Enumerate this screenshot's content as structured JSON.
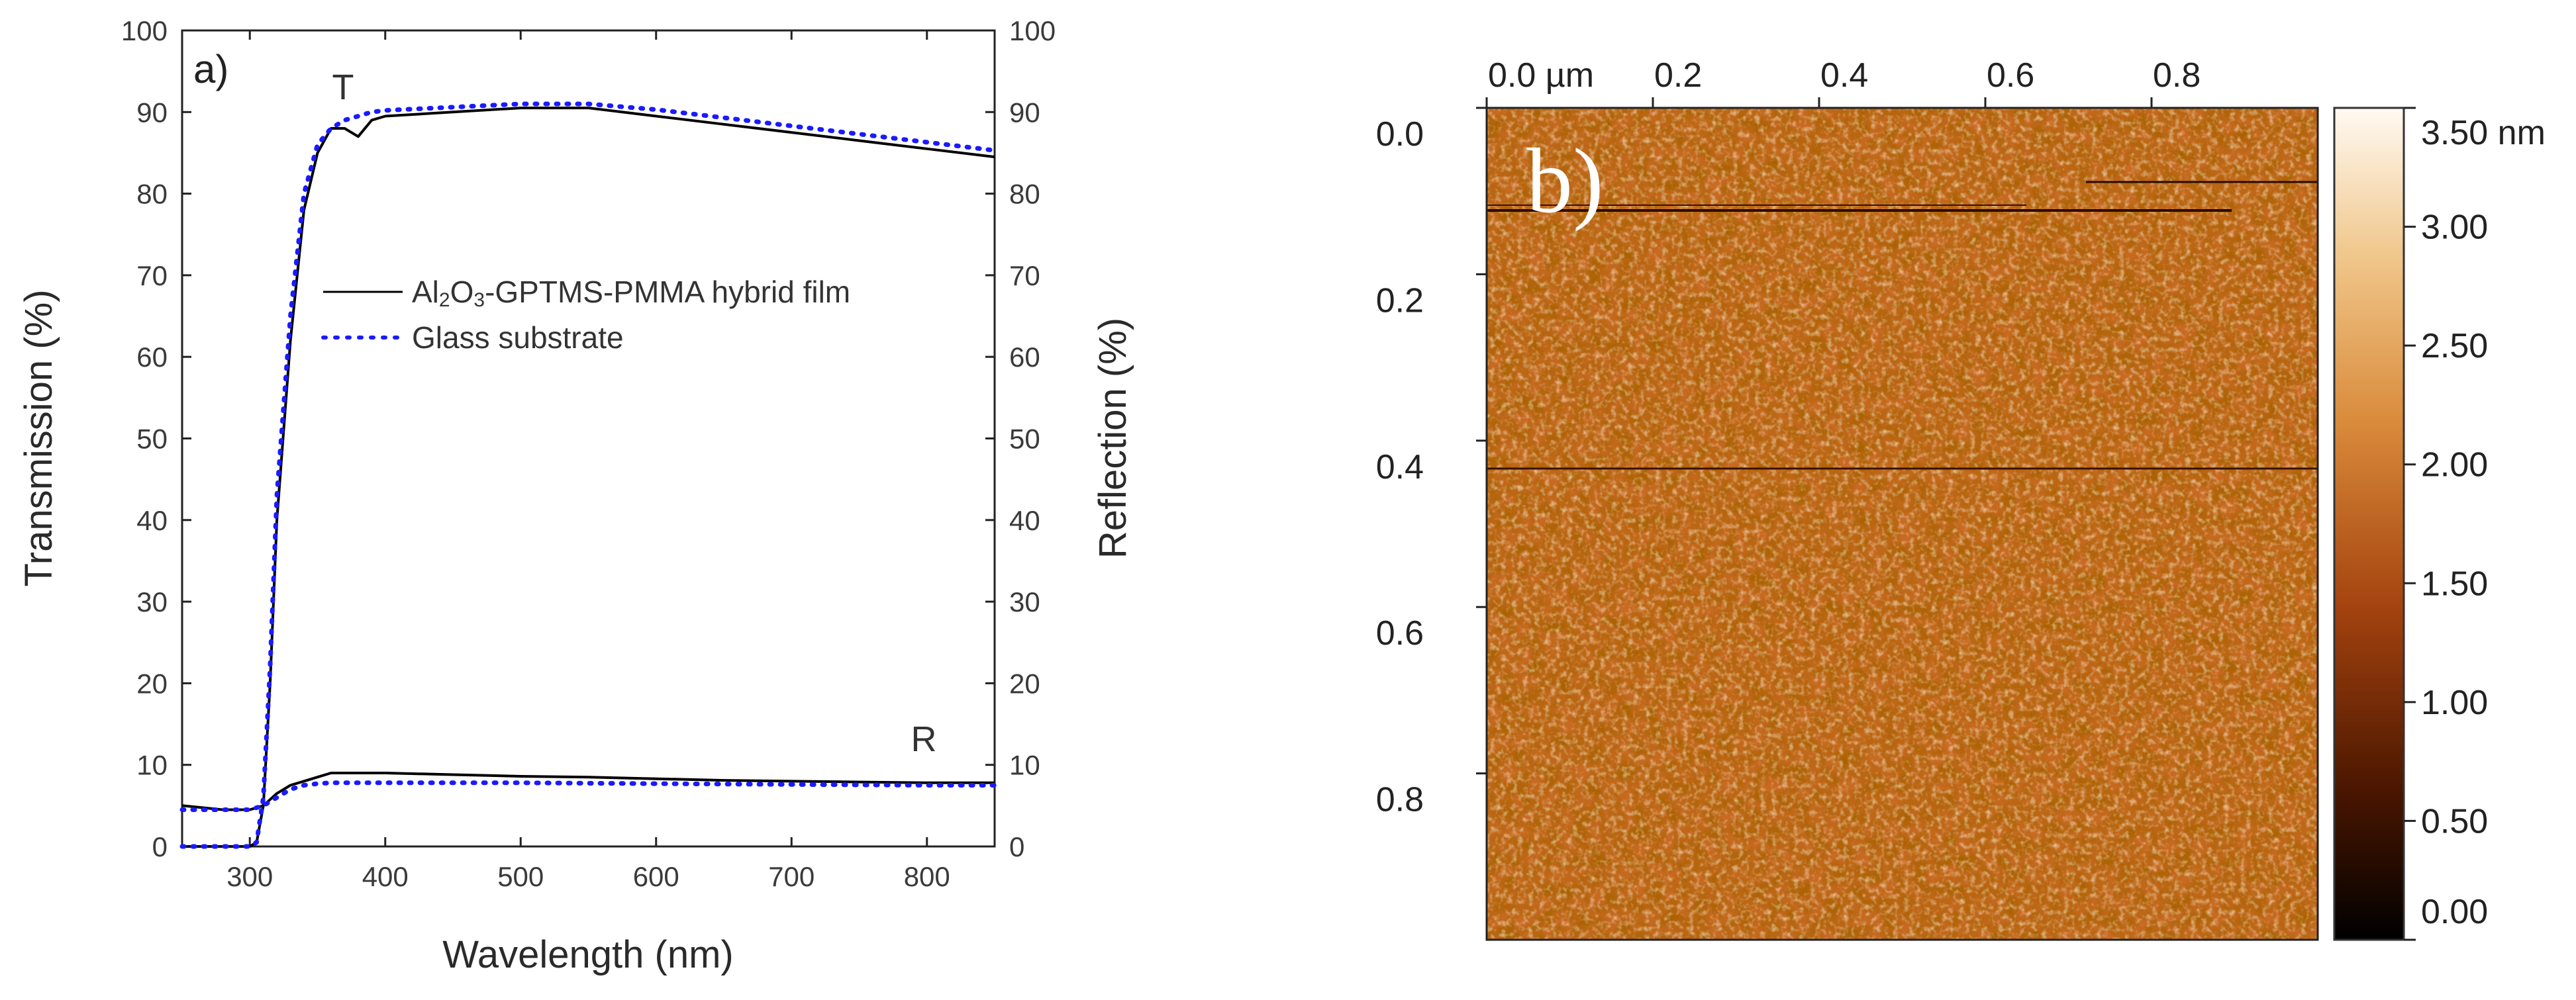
{
  "chart_data": [
    {
      "type": "line",
      "panel_label": "a)",
      "xlabel": "Wavelength (nm)",
      "ylabel": "Transmission (%)",
      "y2label": "Reflection (%)",
      "xlim": [
        250,
        850
      ],
      "ylim": [
        0,
        100
      ],
      "y2lim": [
        0,
        100
      ],
      "x_ticks": [
        "300",
        "400",
        "500",
        "600",
        "700",
        "800"
      ],
      "y_ticks": [
        "0",
        "10",
        "20",
        "30",
        "40",
        "50",
        "60",
        "70",
        "80",
        "90",
        "100"
      ],
      "y2_ticks": [
        "0",
        "10",
        "20",
        "30",
        "40",
        "50",
        "60",
        "70",
        "80",
        "90",
        "100"
      ],
      "annotations": [
        "T",
        "R"
      ],
      "legend": [
        "Al2O3-GPTMS-PMMA hybrid film",
        "Glass substrate"
      ],
      "series": [
        {
          "name": "Al2O3-GPTMS-PMMA hybrid film (T)",
          "color": "#000000",
          "style": "solid",
          "x": [
            250,
            300,
            305,
            310,
            315,
            320,
            330,
            340,
            350,
            360,
            370,
            380,
            390,
            400,
            450,
            500,
            550,
            600,
            650,
            700,
            750,
            800,
            850
          ],
          "y": [
            0,
            0,
            0.5,
            5,
            20,
            40,
            62,
            78,
            85,
            88,
            88,
            87,
            89,
            89.5,
            90,
            90.5,
            90.5,
            89.5,
            88.5,
            87.5,
            86.5,
            85.5,
            84.5
          ]
        },
        {
          "name": "Glass substrate (T)",
          "color": "#1a1aff",
          "style": "dotted",
          "x": [
            250,
            300,
            305,
            310,
            315,
            320,
            330,
            340,
            350,
            360,
            370,
            380,
            390,
            400,
            450,
            500,
            550,
            600,
            650,
            700,
            750,
            800,
            850
          ],
          "y": [
            0,
            0,
            0.5,
            6,
            22,
            43,
            65,
            80,
            86,
            88,
            89,
            89.5,
            90,
            90.2,
            90.6,
            91,
            91,
            90.3,
            89.3,
            88.3,
            87.3,
            86.3,
            85.3
          ]
        },
        {
          "name": "Al2O3-GPTMS-PMMA hybrid film (R)",
          "color": "#000000",
          "style": "solid",
          "x": [
            250,
            280,
            300,
            310,
            320,
            330,
            340,
            350,
            360,
            380,
            400,
            450,
            500,
            550,
            600,
            650,
            700,
            750,
            800,
            850
          ],
          "y": [
            5,
            4.5,
            4.5,
            5,
            6.5,
            7.5,
            8,
            8.5,
            9,
            9,
            9,
            8.8,
            8.6,
            8.5,
            8.3,
            8.1,
            8,
            7.9,
            7.8,
            7.8
          ]
        },
        {
          "name": "Glass substrate (R)",
          "color": "#1a1aff",
          "style": "dotted",
          "x": [
            250,
            300,
            310,
            320,
            330,
            340,
            350,
            360,
            380,
            400,
            500,
            600,
            700,
            800,
            850
          ],
          "y": [
            4.5,
            4.5,
            5,
            6,
            7,
            7.5,
            7.7,
            7.8,
            7.8,
            7.8,
            7.8,
            7.7,
            7.6,
            7.5,
            7.5
          ]
        }
      ]
    },
    {
      "type": "heatmap",
      "panel_label": "b)",
      "description_colormap": [
        "#000000",
        "#5a1a00",
        "#a64510",
        "#d98a3a",
        "#f0c885",
        "#fff8ec"
      ],
      "x_ticks": [
        "0.0 µm",
        "0.2",
        "0.4",
        "0.6",
        "0.8"
      ],
      "y_ticks": [
        "0.0",
        "0.2",
        "0.4",
        "0.6",
        "0.8"
      ],
      "colorbar_ticks": [
        "3.50 nm",
        "3.00",
        "2.50",
        "2.00",
        "1.50",
        "1.00",
        "0.50",
        "0.00"
      ],
      "colorbar_range": [
        0,
        3.5
      ]
    }
  ]
}
